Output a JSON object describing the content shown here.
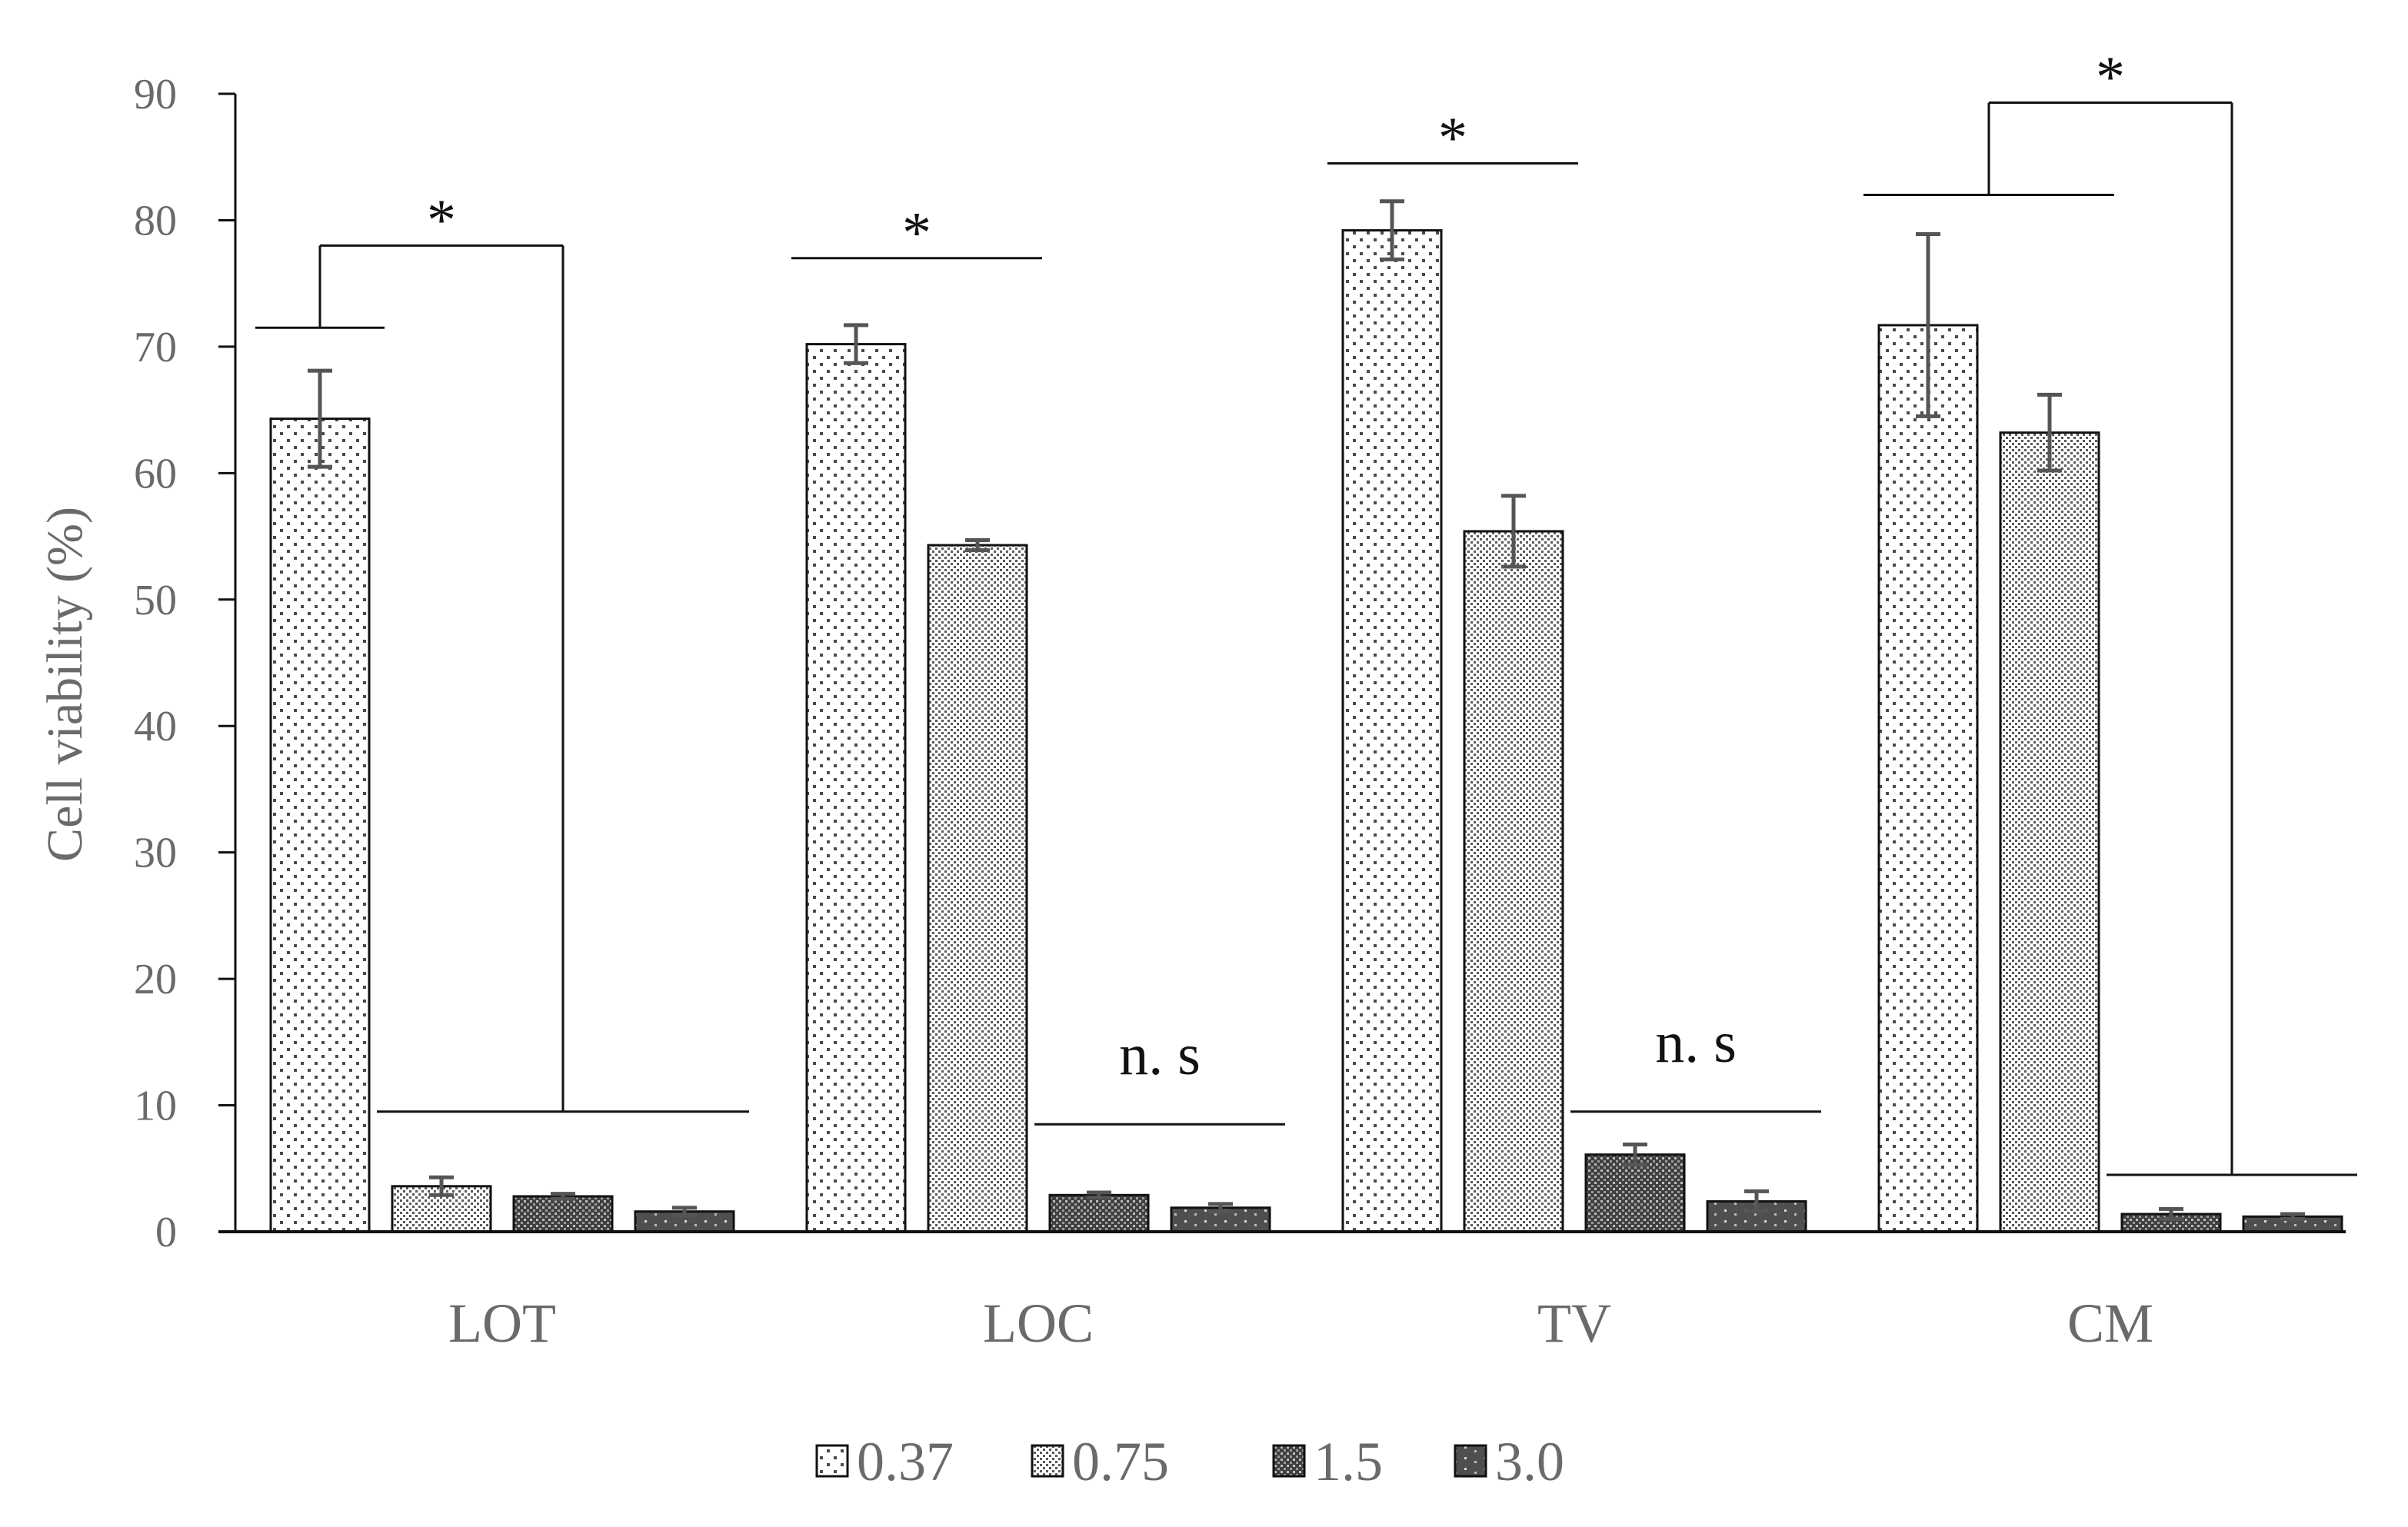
{
  "chart_data": {
    "type": "bar",
    "title": "",
    "xlabel": "",
    "ylabel": "Cell viability (%)",
    "ylim": [
      0,
      90
    ],
    "yticks": [
      0,
      10,
      20,
      30,
      40,
      50,
      60,
      70,
      80,
      90
    ],
    "categories": [
      "LOT",
      "LOC",
      "TV",
      "CM"
    ],
    "legend_position": "bottom-center",
    "series": [
      {
        "name": "0.37",
        "values": [
          64.3,
          70.2,
          79.2,
          71.7
        ],
        "errors": [
          3.8,
          1.5,
          2.3,
          7.2
        ],
        "pattern": "sparse-dots"
      },
      {
        "name": "0.75",
        "values": [
          3.6,
          54.3,
          55.4,
          63.2
        ],
        "errors": [
          0.7,
          0.4,
          2.8,
          3.0
        ],
        "pattern": "fine-dots"
      },
      {
        "name": "1.5",
        "values": [
          2.8,
          2.9,
          6.1,
          1.4
        ],
        "errors": [
          0.2,
          0.2,
          0.8,
          0.4
        ],
        "pattern": "dense-grid"
      },
      {
        "name": "3.0",
        "values": [
          1.6,
          1.9,
          2.4,
          1.2
        ],
        "errors": [
          0.3,
          0.3,
          0.8,
          0.2
        ],
        "pattern": "dark"
      }
    ],
    "annotations": [
      {
        "group": "LOT",
        "label": "*",
        "kind": "bracket",
        "left_series": [
          "0.37"
        ],
        "right_series": [
          "0.75",
          "1.5",
          "3.0"
        ],
        "left_level": 71.5,
        "right_level": 9.5,
        "top": 78.0
      },
      {
        "group": "LOC",
        "label": "*",
        "kind": "line",
        "series": [
          "0.37",
          "0.75"
        ],
        "level": 77.0
      },
      {
        "group": "LOC",
        "label": "n. s",
        "kind": "line",
        "series": [
          "1.5",
          "3.0"
        ],
        "level": 8.5
      },
      {
        "group": "TV",
        "label": "*",
        "kind": "line",
        "series": [
          "0.37",
          "0.75"
        ],
        "level": 84.5
      },
      {
        "group": "TV",
        "label": "n. s",
        "kind": "line",
        "series": [
          "1.5",
          "3.0"
        ],
        "level": 9.5
      },
      {
        "group": "CM",
        "label": "*",
        "kind": "bracket",
        "left_series": [
          "0.37",
          "0.75"
        ],
        "right_series": [
          "1.5",
          "3.0"
        ],
        "left_level": 82.0,
        "right_level": 4.5,
        "top": 89.3
      }
    ]
  }
}
